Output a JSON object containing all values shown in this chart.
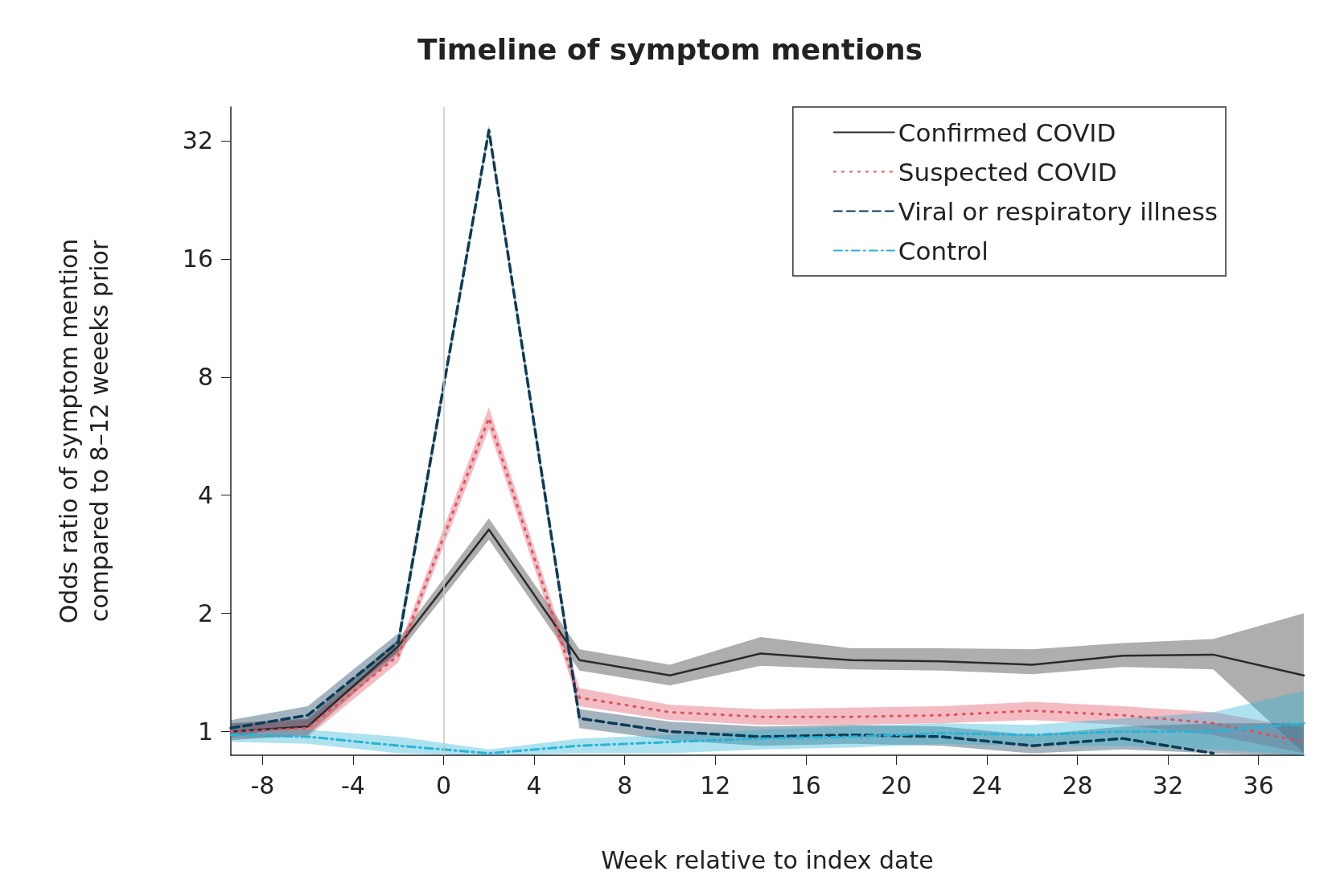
{
  "chart_data": {
    "type": "line",
    "title": "Timeline of symptom mentions",
    "xlabel": "Week relative to index date",
    "ylabel": "Odds ratio of symptom mention\ncompared to 8–12 weeeks prior",
    "log": "y",
    "xlim": [
      -9.4,
      38
    ],
    "xticks": [
      -8,
      -4,
      0,
      4,
      8,
      12,
      16,
      20,
      24,
      28,
      32,
      36
    ],
    "ylim": [
      0.87,
      39
    ],
    "yticks": [
      1,
      2,
      4,
      8,
      16,
      32
    ],
    "x": [
      -9.4,
      -6,
      -2,
      2,
      6,
      10,
      14,
      18,
      22,
      26,
      30,
      34,
      38
    ],
    "grid": false,
    "legend": "top right",
    "marker": "none",
    "ref_lines": [
      {
        "axis": "x",
        "value": 0,
        "color": "#c8c8c8"
      }
    ],
    "series": [
      {
        "name": "Confirmed COVID",
        "color": "#2b2b2b",
        "line_style": "solid",
        "values": [
          1.0,
          1.03,
          1.65,
          3.27,
          1.52,
          1.39,
          1.58,
          1.52,
          1.51,
          1.48,
          1.56,
          1.57,
          1.39
        ],
        "lower": [
          0.95,
          0.98,
          1.58,
          3.08,
          1.43,
          1.31,
          1.47,
          1.44,
          1.43,
          1.4,
          1.46,
          1.44,
          0.88
        ],
        "upper": [
          1.05,
          1.08,
          1.72,
          3.49,
          1.62,
          1.48,
          1.74,
          1.63,
          1.63,
          1.62,
          1.68,
          1.72,
          2.0
        ]
      },
      {
        "name": "Suspected COVID",
        "color": "#e0505f",
        "line_style": "dotted",
        "values": [
          1.0,
          1.02,
          1.56,
          6.29,
          1.22,
          1.12,
          1.09,
          1.09,
          1.1,
          1.13,
          1.1,
          1.05,
          0.94
        ],
        "lower": [
          0.96,
          0.97,
          1.5,
          5.9,
          1.16,
          1.07,
          1.04,
          1.04,
          1.05,
          1.07,
          1.04,
          0.98,
          0.88
        ],
        "upper": [
          1.04,
          1.07,
          1.63,
          6.7,
          1.29,
          1.17,
          1.14,
          1.15,
          1.16,
          1.19,
          1.16,
          1.12,
          1.02
        ]
      },
      {
        "name": "Viral or respiratory illness",
        "color": "#0d3b56",
        "line_style": "dashed",
        "values": [
          1.02,
          1.1,
          1.69,
          34,
          1.08,
          1.0,
          0.97,
          0.98,
          0.97,
          0.92,
          0.96,
          0.88,
          null
        ],
        "lower": [
          0.97,
          1.04,
          1.6,
          33,
          1.02,
          0.95,
          0.92,
          0.93,
          0.92,
          0.88,
          0.9,
          0.88,
          0.87
        ],
        "upper": [
          1.07,
          1.16,
          1.78,
          35,
          1.14,
          1.06,
          1.03,
          1.04,
          1.03,
          0.98,
          1.03,
          1.05,
          1.05
        ]
      },
      {
        "name": "Control",
        "color": "#2ab3d6",
        "line_style": "dashdot",
        "values": [
          0.98,
          0.97,
          0.92,
          0.88,
          0.92,
          0.94,
          0.96,
          0.97,
          0.99,
          0.98,
          1.0,
          1.0,
          1.05
        ],
        "lower": [
          0.94,
          0.93,
          0.88,
          0.87,
          0.88,
          0.88,
          0.9,
          0.91,
          0.93,
          0.92,
          0.92,
          0.9,
          0.87
        ],
        "upper": [
          1.02,
          1.01,
          0.97,
          0.9,
          0.96,
          0.98,
          1.01,
          1.03,
          1.05,
          1.04,
          1.08,
          1.12,
          1.27
        ]
      }
    ]
  }
}
